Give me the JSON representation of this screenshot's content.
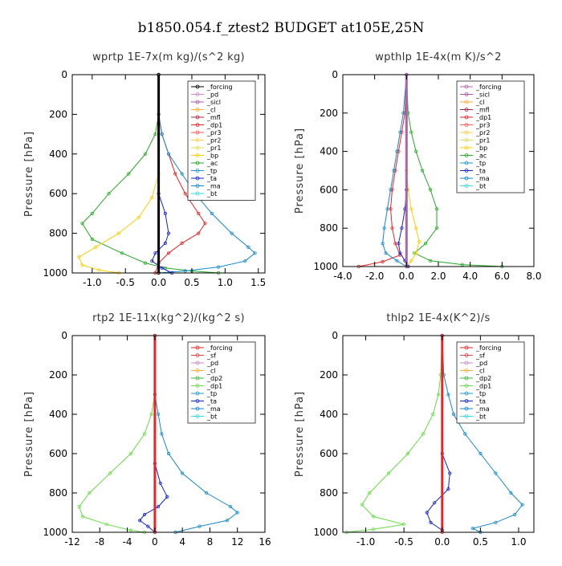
{
  "figure_title": "b1850.054.f_ztest2  BUDGET at105E,25N",
  "chart_data": [
    {
      "type": "line",
      "title": "wprtp   1E-7x(m kg)/(s^2 kg)",
      "ylabel": "Pressure [hPa]",
      "xlim": [
        -1.3,
        1.6
      ],
      "ylim": [
        0,
        1000
      ],
      "y_reversed": true,
      "xticks": [
        -1.0,
        -0.5,
        0.0,
        0.5,
        1.0,
        1.5
      ],
      "xtick_labels": [
        "-1.0",
        "-0.5",
        "0.0",
        "0.5",
        "1.0",
        "1.5"
      ],
      "yticks": [
        0,
        200,
        400,
        600,
        800,
        1000
      ],
      "legend_position": "top-right",
      "legend": [
        "_forcing",
        "_pd",
        "_sicl",
        "_cl",
        "_mfl",
        "_dp1",
        "_pr3",
        "_pr2",
        "_pr1",
        "_bp",
        "_ac",
        "_tp",
        "_ta",
        "_ma",
        "_bt"
      ],
      "series": [
        {
          "name": "_ac",
          "color": "#22aa22",
          "points": [
            [
              0.0,
              0
            ],
            [
              0.0,
              200
            ],
            [
              -0.05,
              300
            ],
            [
              -0.2,
              400
            ],
            [
              -0.45,
              500
            ],
            [
              -0.75,
              600
            ],
            [
              -1.0,
              700
            ],
            [
              -1.15,
              750
            ],
            [
              -1.0,
              830
            ],
            [
              -0.55,
              900
            ],
            [
              -0.2,
              950
            ],
            [
              0.1,
              975
            ],
            [
              0.5,
              990
            ],
            [
              0.9,
              1000
            ]
          ]
        },
        {
          "name": "_bp",
          "color": "#ffcc00",
          "points": [
            [
              0.0,
              0
            ],
            [
              0.0,
              500
            ],
            [
              -0.1,
              620
            ],
            [
              -0.3,
              720
            ],
            [
              -0.6,
              800
            ],
            [
              -0.95,
              870
            ],
            [
              -1.2,
              920
            ],
            [
              -1.15,
              960
            ],
            [
              -0.9,
              985
            ],
            [
              -0.6,
              1000
            ]
          ]
        },
        {
          "name": "_dp1",
          "color": "#ee2222",
          "points": [
            [
              0.0,
              0
            ],
            [
              0.0,
              200
            ],
            [
              0.05,
              300
            ],
            [
              0.15,
              400
            ],
            [
              0.25,
              500
            ],
            [
              0.4,
              600
            ],
            [
              0.6,
              700
            ],
            [
              0.7,
              750
            ],
            [
              0.6,
              800
            ],
            [
              0.35,
              850
            ],
            [
              0.15,
              900
            ],
            [
              0.0,
              950
            ],
            [
              -0.05,
              1000
            ]
          ]
        },
        {
          "name": "_ma",
          "color": "#1188cc",
          "points": [
            [
              0.0,
              0
            ],
            [
              0.0,
              200
            ],
            [
              0.05,
              300
            ],
            [
              0.15,
              400
            ],
            [
              0.35,
              500
            ],
            [
              0.55,
              600
            ],
            [
              0.8,
              700
            ],
            [
              1.1,
              800
            ],
            [
              1.35,
              870
            ],
            [
              1.45,
              900
            ],
            [
              1.3,
              940
            ],
            [
              0.9,
              970
            ],
            [
              0.4,
              990
            ],
            [
              0.0,
              1000
            ]
          ]
        },
        {
          "name": "_ta",
          "color": "#1122cc",
          "points": [
            [
              0.0,
              0
            ],
            [
              0.0,
              600
            ],
            [
              0.1,
              700
            ],
            [
              0.15,
              800
            ],
            [
              0.1,
              850
            ],
            [
              -0.05,
              900
            ],
            [
              -0.1,
              940
            ],
            [
              0.05,
              975
            ],
            [
              0.2,
              1000
            ]
          ]
        },
        {
          "name": "_forcing",
          "color": "#000000",
          "points": [
            [
              0.0,
              0
            ],
            [
              0.0,
              1000
            ]
          ]
        }
      ]
    },
    {
      "type": "line",
      "title": "wpthlp   1E-4x(m K)/s^2",
      "ylabel": "Pressure [hPa]",
      "xlim": [
        -4.0,
        8.0
      ],
      "ylim": [
        0,
        1000
      ],
      "y_reversed": true,
      "xticks": [
        -4.0,
        -2.0,
        0.0,
        2.0,
        4.0,
        6.0,
        8.0
      ],
      "xtick_labels": [
        "-4.0",
        "-2.0",
        "0.0",
        "2.0",
        "4.0",
        "6.0",
        "8.0"
      ],
      "yticks": [
        0,
        200,
        400,
        600,
        800,
        1000
      ],
      "legend_position": "top-right",
      "legend": [
        "_forcing",
        "_sicl",
        "_cl",
        "_mfl",
        "_dp1",
        "_pr3",
        "_pr2",
        "_pr1",
        "_bp",
        "_ac",
        "_tp",
        "_ta",
        "_ma",
        "_bt"
      ],
      "series": [
        {
          "name": "_ac",
          "color": "#22aa22",
          "points": [
            [
              0.0,
              0
            ],
            [
              0.1,
              200
            ],
            [
              0.3,
              300
            ],
            [
              0.6,
              400
            ],
            [
              1.0,
              500
            ],
            [
              1.5,
              600
            ],
            [
              1.9,
              700
            ],
            [
              1.9,
              800
            ],
            [
              1.2,
              880
            ],
            [
              0.5,
              930
            ],
            [
              1.5,
              970
            ],
            [
              3.5,
              990
            ],
            [
              6.0,
              1000
            ]
          ]
        },
        {
          "name": "_dp1",
          "color": "#ee2222",
          "points": [
            [
              0.0,
              0
            ],
            [
              -0.1,
              200
            ],
            [
              -0.3,
              300
            ],
            [
              -0.5,
              400
            ],
            [
              -0.7,
              500
            ],
            [
              -0.9,
              600
            ],
            [
              -1.0,
              700
            ],
            [
              -0.9,
              800
            ],
            [
              -0.7,
              880
            ],
            [
              -0.4,
              940
            ],
            [
              -1.5,
              975
            ],
            [
              -3.0,
              1000
            ]
          ]
        },
        {
          "name": "_ma",
          "color": "#1188cc",
          "points": [
            [
              0.0,
              0
            ],
            [
              -0.2,
              200
            ],
            [
              -0.4,
              300
            ],
            [
              -0.6,
              400
            ],
            [
              -0.8,
              500
            ],
            [
              -1.0,
              600
            ],
            [
              -1.2,
              700
            ],
            [
              -1.4,
              800
            ],
            [
              -1.5,
              880
            ],
            [
              -1.3,
              930
            ],
            [
              -0.6,
              970
            ],
            [
              0.0,
              1000
            ]
          ]
        },
        {
          "name": "_bp",
          "color": "#ffcc00",
          "points": [
            [
              0.0,
              0
            ],
            [
              0.0,
              500
            ],
            [
              0.1,
              600
            ],
            [
              0.3,
              700
            ],
            [
              0.6,
              800
            ],
            [
              0.8,
              870
            ],
            [
              0.6,
              930
            ],
            [
              0.3,
              970
            ],
            [
              0.0,
              1000
            ]
          ]
        },
        {
          "name": "_ta",
          "color": "#1122cc",
          "points": [
            [
              0.0,
              0
            ],
            [
              0.0,
              600
            ],
            [
              -0.1,
              700
            ],
            [
              -0.3,
              800
            ],
            [
              -0.5,
              880
            ],
            [
              -0.4,
              930
            ],
            [
              -0.1,
              970
            ],
            [
              0.1,
              1000
            ]
          ]
        },
        {
          "name": "_forcing",
          "color": "#aa66aa",
          "points": [
            [
              0.0,
              0
            ],
            [
              0.0,
              1000
            ]
          ]
        }
      ]
    },
    {
      "type": "line",
      "title": "rtp2   1E-11x(kg^2)/(kg^2 s)",
      "ylabel": "Pressure [hPa]",
      "xlim": [
        -12,
        16
      ],
      "ylim": [
        0,
        1000
      ],
      "y_reversed": true,
      "xticks": [
        -12,
        -8,
        -4,
        0,
        4,
        8,
        12,
        16
      ],
      "xtick_labels": [
        "-12",
        "-8",
        "-4",
        "0",
        "4",
        "8",
        "12",
        "16"
      ],
      "yticks": [
        0,
        200,
        400,
        600,
        800,
        1000
      ],
      "legend_position": "top-right",
      "legend": [
        "_forcing",
        "_sf",
        "_pd",
        "_cl",
        "_dp2",
        "_dp1",
        "_tp",
        "_ta",
        "_ma",
        "_bt"
      ],
      "series": [
        {
          "name": "_dp1",
          "color": "#66dd44",
          "points": [
            [
              0.0,
              0
            ],
            [
              0.0,
              300
            ],
            [
              -0.5,
              400
            ],
            [
              -1.5,
              500
            ],
            [
              -3.5,
              600
            ],
            [
              -6.5,
              700
            ],
            [
              -9.5,
              800
            ],
            [
              -11.0,
              870
            ],
            [
              -10.5,
              920
            ],
            [
              -7.0,
              960
            ],
            [
              -3.5,
              990
            ],
            [
              -1.5,
              1000
            ]
          ]
        },
        {
          "name": "_ma",
          "color": "#1188cc",
          "points": [
            [
              0.0,
              0
            ],
            [
              0.0,
              300
            ],
            [
              0.5,
              400
            ],
            [
              1.0,
              500
            ],
            [
              2.0,
              600
            ],
            [
              4.0,
              700
            ],
            [
              7.5,
              800
            ],
            [
              11.0,
              870
            ],
            [
              12.0,
              900
            ],
            [
              10.5,
              940
            ],
            [
              6.5,
              970
            ],
            [
              3.0,
              1000
            ]
          ]
        },
        {
          "name": "_ta",
          "color": "#1122cc",
          "points": [
            [
              0.0,
              0
            ],
            [
              0.0,
              650
            ],
            [
              0.8,
              750
            ],
            [
              1.8,
              820
            ],
            [
              0.5,
              870
            ],
            [
              -1.5,
              910
            ],
            [
              -2.2,
              940
            ],
            [
              -1.0,
              970
            ],
            [
              0.0,
              1000
            ]
          ]
        },
        {
          "name": "_forcing",
          "color": "#ee2222",
          "points": [
            [
              0.0,
              0
            ],
            [
              0.0,
              1000
            ]
          ]
        }
      ]
    },
    {
      "type": "line",
      "title": "thlp2   1E-4x(K^2)/s",
      "ylabel": "Pressure [hPa]",
      "xlim": [
        -1.3,
        1.2
      ],
      "ylim": [
        0,
        1000
      ],
      "y_reversed": true,
      "xticks": [
        -1.0,
        -0.5,
        0.0,
        0.5,
        1.0
      ],
      "xtick_labels": [
        "-1.0",
        "-0.5",
        "0.0",
        "0.5",
        "1.0"
      ],
      "yticks": [
        0,
        200,
        400,
        600,
        800,
        1000
      ],
      "legend_position": "top-right",
      "legend": [
        "_forcing",
        "_sf",
        "_pd",
        "_cl",
        "_dp2",
        "_dp1",
        "_tp",
        "_ta",
        "_ma",
        "_bt"
      ],
      "series": [
        {
          "name": "_dp1",
          "color": "#66dd44",
          "points": [
            [
              0.0,
              0
            ],
            [
              -0.02,
              200
            ],
            [
              -0.05,
              300
            ],
            [
              -0.12,
              400
            ],
            [
              -0.25,
              500
            ],
            [
              -0.45,
              600
            ],
            [
              -0.7,
              700
            ],
            [
              -0.95,
              800
            ],
            [
              -1.05,
              860
            ],
            [
              -0.9,
              920
            ],
            [
              -0.5,
              960
            ],
            [
              -0.9,
              985
            ],
            [
              -1.25,
              1000
            ]
          ]
        },
        {
          "name": "_ma",
          "color": "#1188cc",
          "points": [
            [
              0.0,
              0
            ],
            [
              0.02,
              200
            ],
            [
              0.08,
              300
            ],
            [
              0.15,
              400
            ],
            [
              0.3,
              500
            ],
            [
              0.5,
              600
            ],
            [
              0.7,
              700
            ],
            [
              0.9,
              800
            ],
            [
              1.05,
              860
            ],
            [
              0.95,
              910
            ],
            [
              0.7,
              950
            ],
            [
              0.4,
              980
            ],
            [
              0.5,
              1000
            ]
          ]
        },
        {
          "name": "_ta",
          "color": "#1122cc",
          "points": [
            [
              0.0,
              0
            ],
            [
              0.0,
              600
            ],
            [
              0.1,
              700
            ],
            [
              0.08,
              780
            ],
            [
              -0.1,
              850
            ],
            [
              -0.2,
              900
            ],
            [
              -0.15,
              950
            ],
            [
              0.0,
              990
            ]
          ]
        },
        {
          "name": "_forcing",
          "color": "#ee2222",
          "points": [
            [
              0.0,
              0
            ],
            [
              0.0,
              1000
            ]
          ]
        }
      ]
    }
  ]
}
